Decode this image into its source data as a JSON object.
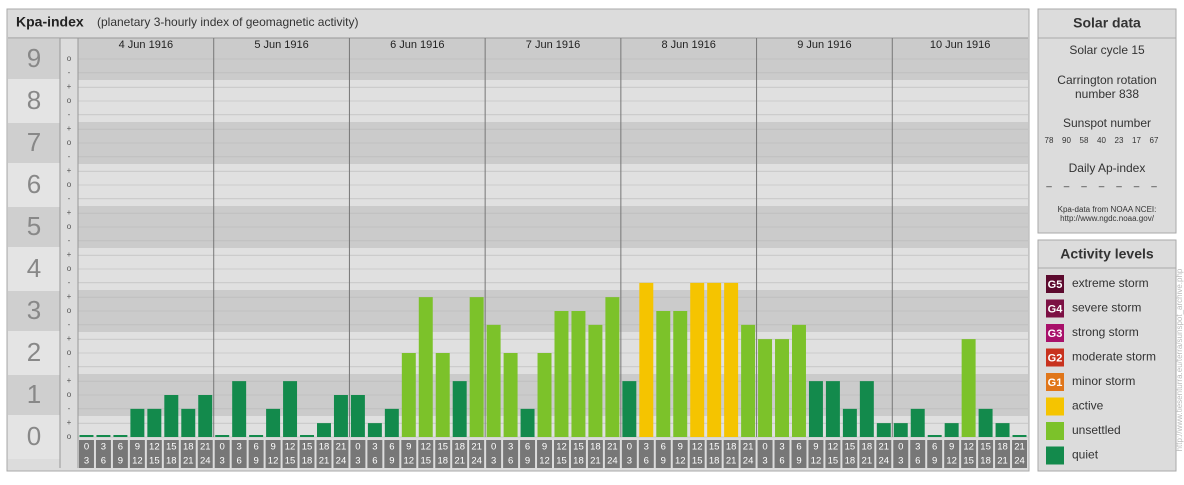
{
  "chart_data": {
    "type": "bar",
    "title": "Kpa-index",
    "subtitle": "(planetary 3-hourly index of geomagnetic activity)",
    "days": [
      "4 Jun 1916",
      "5 Jun 1916",
      "6 Jun 1916",
      "7 Jun 1916",
      "8 Jun 1916",
      "9 Jun 1916",
      "10 Jun 1916"
    ],
    "hours": [
      "0",
      "3",
      "6",
      "9",
      "12",
      "15",
      "18",
      "21"
    ],
    "hours_end": [
      "3",
      "6",
      "9",
      "12",
      "15",
      "18",
      "21",
      "24"
    ],
    "values": [
      0,
      0,
      0,
      0.67,
      0.67,
      1,
      0.67,
      1,
      0,
      1.33,
      0,
      0.67,
      1.33,
      0,
      0.33,
      1,
      1,
      0.33,
      0.67,
      2,
      3.33,
      2,
      1.33,
      3.33,
      2.67,
      2,
      0.67,
      2,
      3,
      3,
      2.67,
      3.33,
      1.33,
      3.67,
      3,
      3,
      3.67,
      3.67,
      3.67,
      2.67,
      2.33,
      2.33,
      2.67,
      1.33,
      1.33,
      0.67,
      1.33,
      0.33,
      0.33,
      0.67,
      0,
      0.33,
      2.33,
      0.67,
      0.33,
      0
    ],
    "colors": [
      "#138a4c",
      "#138a4c",
      "#138a4c",
      "#138a4c",
      "#138a4c",
      "#138a4c",
      "#138a4c",
      "#138a4c",
      "#138a4c",
      "#138a4c",
      "#138a4c",
      "#138a4c",
      "#138a4c",
      "#138a4c",
      "#138a4c",
      "#138a4c",
      "#138a4c",
      "#138a4c",
      "#138a4c",
      "#7cc22a",
      "#7cc22a",
      "#7cc22a",
      "#138a4c",
      "#7cc22a",
      "#7cc22a",
      "#7cc22a",
      "#138a4c",
      "#7cc22a",
      "#7cc22a",
      "#7cc22a",
      "#7cc22a",
      "#7cc22a",
      "#138a4c",
      "#f5c400",
      "#7cc22a",
      "#7cc22a",
      "#f5c400",
      "#f5c400",
      "#f5c400",
      "#7cc22a",
      "#7cc22a",
      "#7cc22a",
      "#7cc22a",
      "#138a4c",
      "#138a4c",
      "#138a4c",
      "#138a4c",
      "#138a4c",
      "#138a4c",
      "#138a4c",
      "#138a4c",
      "#138a4c",
      "#7cc22a",
      "#138a4c",
      "#138a4c",
      "#138a4c"
    ],
    "ylim": [
      0,
      9
    ],
    "yticks": [
      0,
      1,
      2,
      3,
      4,
      5,
      6,
      7,
      8,
      9
    ],
    "minor_ticks": [
      {
        "value": 0,
        "label": "o"
      },
      {
        "value": 0.33,
        "label": "+"
      },
      {
        "value": 0.67,
        "label": "-"
      },
      {
        "value": 1,
        "label": "o"
      },
      {
        "value": 1.33,
        "label": "+"
      },
      {
        "value": 1.67,
        "label": "-"
      },
      {
        "value": 2,
        "label": "o"
      },
      {
        "value": 2.33,
        "label": "+"
      },
      {
        "value": 2.67,
        "label": "-"
      },
      {
        "value": 3,
        "label": "o"
      },
      {
        "value": 3.33,
        "label": "+"
      },
      {
        "value": 3.67,
        "label": "-"
      },
      {
        "value": 4,
        "label": "o"
      },
      {
        "value": 4.33,
        "label": "+"
      },
      {
        "value": 4.67,
        "label": "-"
      },
      {
        "value": 5,
        "label": "o"
      },
      {
        "value": 5.33,
        "label": "+"
      },
      {
        "value": 5.67,
        "label": "-"
      },
      {
        "value": 6,
        "label": "o"
      },
      {
        "value": 6.33,
        "label": "+"
      },
      {
        "value": 6.67,
        "label": "-"
      },
      {
        "value": 7,
        "label": "o"
      },
      {
        "value": 7.33,
        "label": "+"
      },
      {
        "value": 7.67,
        "label": "-"
      },
      {
        "value": 8,
        "label": "o"
      },
      {
        "value": 8.33,
        "label": "+"
      },
      {
        "value": 8.67,
        "label": "-"
      },
      {
        "value": 9,
        "label": "o"
      }
    ],
    "grid": true
  },
  "solar_data": {
    "title": "Solar data",
    "solar_cycle": "Solar cycle 15",
    "carrington": [
      "Carrington rotation",
      "number 838"
    ],
    "sunspot_label": "Sunspot number",
    "sunspots": [
      78,
      90,
      58,
      40,
      23,
      17,
      67
    ],
    "ap_label": "Daily Ap-index",
    "ap": [
      "–",
      "–",
      "–",
      "–",
      "–",
      "–",
      "–"
    ],
    "source": [
      "Kpa-data from NOAA NCEI:",
      "http://www.ngdc.noaa.gov/"
    ]
  },
  "activity_levels": {
    "title": "Activity levels",
    "items": [
      {
        "badge": "G5",
        "label": "extreme storm",
        "color": "#5c0a2e"
      },
      {
        "badge": "G4",
        "label": "severe storm",
        "color": "#7c1044"
      },
      {
        "badge": "G3",
        "label": "strong storm",
        "color": "#a8106a"
      },
      {
        "badge": "G2",
        "label": "moderate storm",
        "color": "#c8321e"
      },
      {
        "badge": "G1",
        "label": "minor storm",
        "color": "#e0761a"
      },
      {
        "badge": "",
        "label": "active",
        "color": "#f5c400"
      },
      {
        "badge": "",
        "label": "unsettled",
        "color": "#7cc22a"
      },
      {
        "badge": "",
        "label": "quiet",
        "color": "#138a4c"
      }
    ]
  },
  "credit": "http://www.tiesenturra.eu/terra/sunspot_archive.php"
}
